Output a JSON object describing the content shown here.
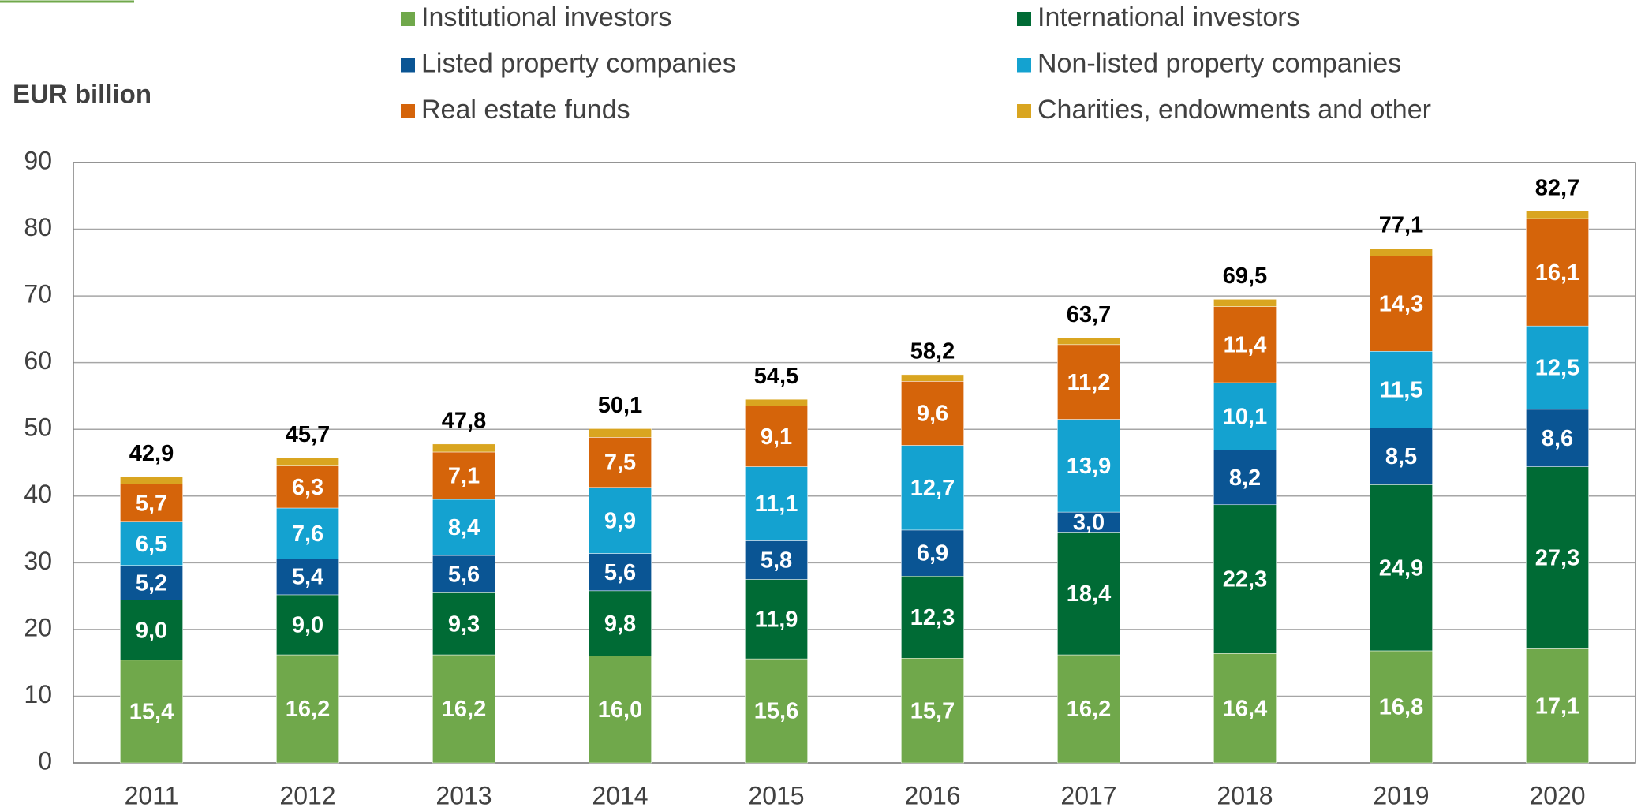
{
  "chart_data": {
    "type": "stacked_bar",
    "y_label": "EUR billion",
    "categories": [
      "2011",
      "2012",
      "2013",
      "2014",
      "2015",
      "2016",
      "2017",
      "2018",
      "2019",
      "2020"
    ],
    "series": [
      {
        "name": "Institutional investors",
        "color": "#70a84b",
        "values": [
          15.4,
          16.2,
          16.2,
          16.0,
          15.6,
          15.7,
          16.2,
          16.4,
          16.8,
          17.1
        ],
        "value_labels": [
          "15,4",
          "16,2",
          "16,2",
          "16,0",
          "15,6",
          "15,7",
          "16,2",
          "16,4",
          "16,8",
          "17,1"
        ]
      },
      {
        "name": "International investors",
        "color": "#006b35",
        "values": [
          9.0,
          9.0,
          9.3,
          9.8,
          11.9,
          12.3,
          18.4,
          22.3,
          24.9,
          27.3
        ],
        "value_labels": [
          "9,0",
          "9,0",
          "9,3",
          "9,8",
          "11,9",
          "12,3",
          "18,4",
          "22,3",
          "24,9",
          "27,3"
        ]
      },
      {
        "name": "Listed property companies",
        "color": "#0a5594",
        "values": [
          5.2,
          5.4,
          5.6,
          5.6,
          5.8,
          6.9,
          3.0,
          8.2,
          8.5,
          8.6
        ],
        "value_labels": [
          "5,2",
          "5,4",
          "5,6",
          "5,6",
          "5,8",
          "6,9",
          "3,0",
          "8,2",
          "8,5",
          "8,6"
        ]
      },
      {
        "name": "Non-listed property companies",
        "color": "#14a2d0",
        "values": [
          6.5,
          7.6,
          8.4,
          9.9,
          11.1,
          12.7,
          13.9,
          10.1,
          11.5,
          12.5
        ],
        "value_labels": [
          "6,5",
          "7,6",
          "8,4",
          "9,9",
          "11,1",
          "12,7",
          "13,9",
          "10,1",
          "11,5",
          "12,5"
        ]
      },
      {
        "name": "Real estate funds",
        "color": "#d5640a",
        "values": [
          5.7,
          6.3,
          7.1,
          7.5,
          9.1,
          9.6,
          11.2,
          11.4,
          14.3,
          16.1
        ],
        "value_labels": [
          "5,7",
          "6,3",
          "7,1",
          "7,5",
          "9,1",
          "9,6",
          "11,2",
          "11,4",
          "14,3",
          "16,1"
        ]
      },
      {
        "name": "Charities, endowments and other",
        "color": "#d9a520",
        "values": [
          1.1,
          1.2,
          1.2,
          1.3,
          1.0,
          1.0,
          1.0,
          1.1,
          1.1,
          1.1
        ]
      }
    ],
    "totals": [
      42.9,
      45.7,
      47.8,
      50.1,
      54.5,
      58.2,
      63.7,
      69.5,
      77.1,
      82.7
    ],
    "total_labels": [
      "42,9",
      "45,7",
      "47,8",
      "50,1",
      "54,5",
      "58,2",
      "63,7",
      "69,5",
      "77,1",
      "82,7"
    ],
    "ylim": [
      0,
      90
    ],
    "yticks": [
      0,
      10,
      20,
      30,
      40,
      50,
      60,
      70,
      80,
      90
    ],
    "grid": true
  }
}
